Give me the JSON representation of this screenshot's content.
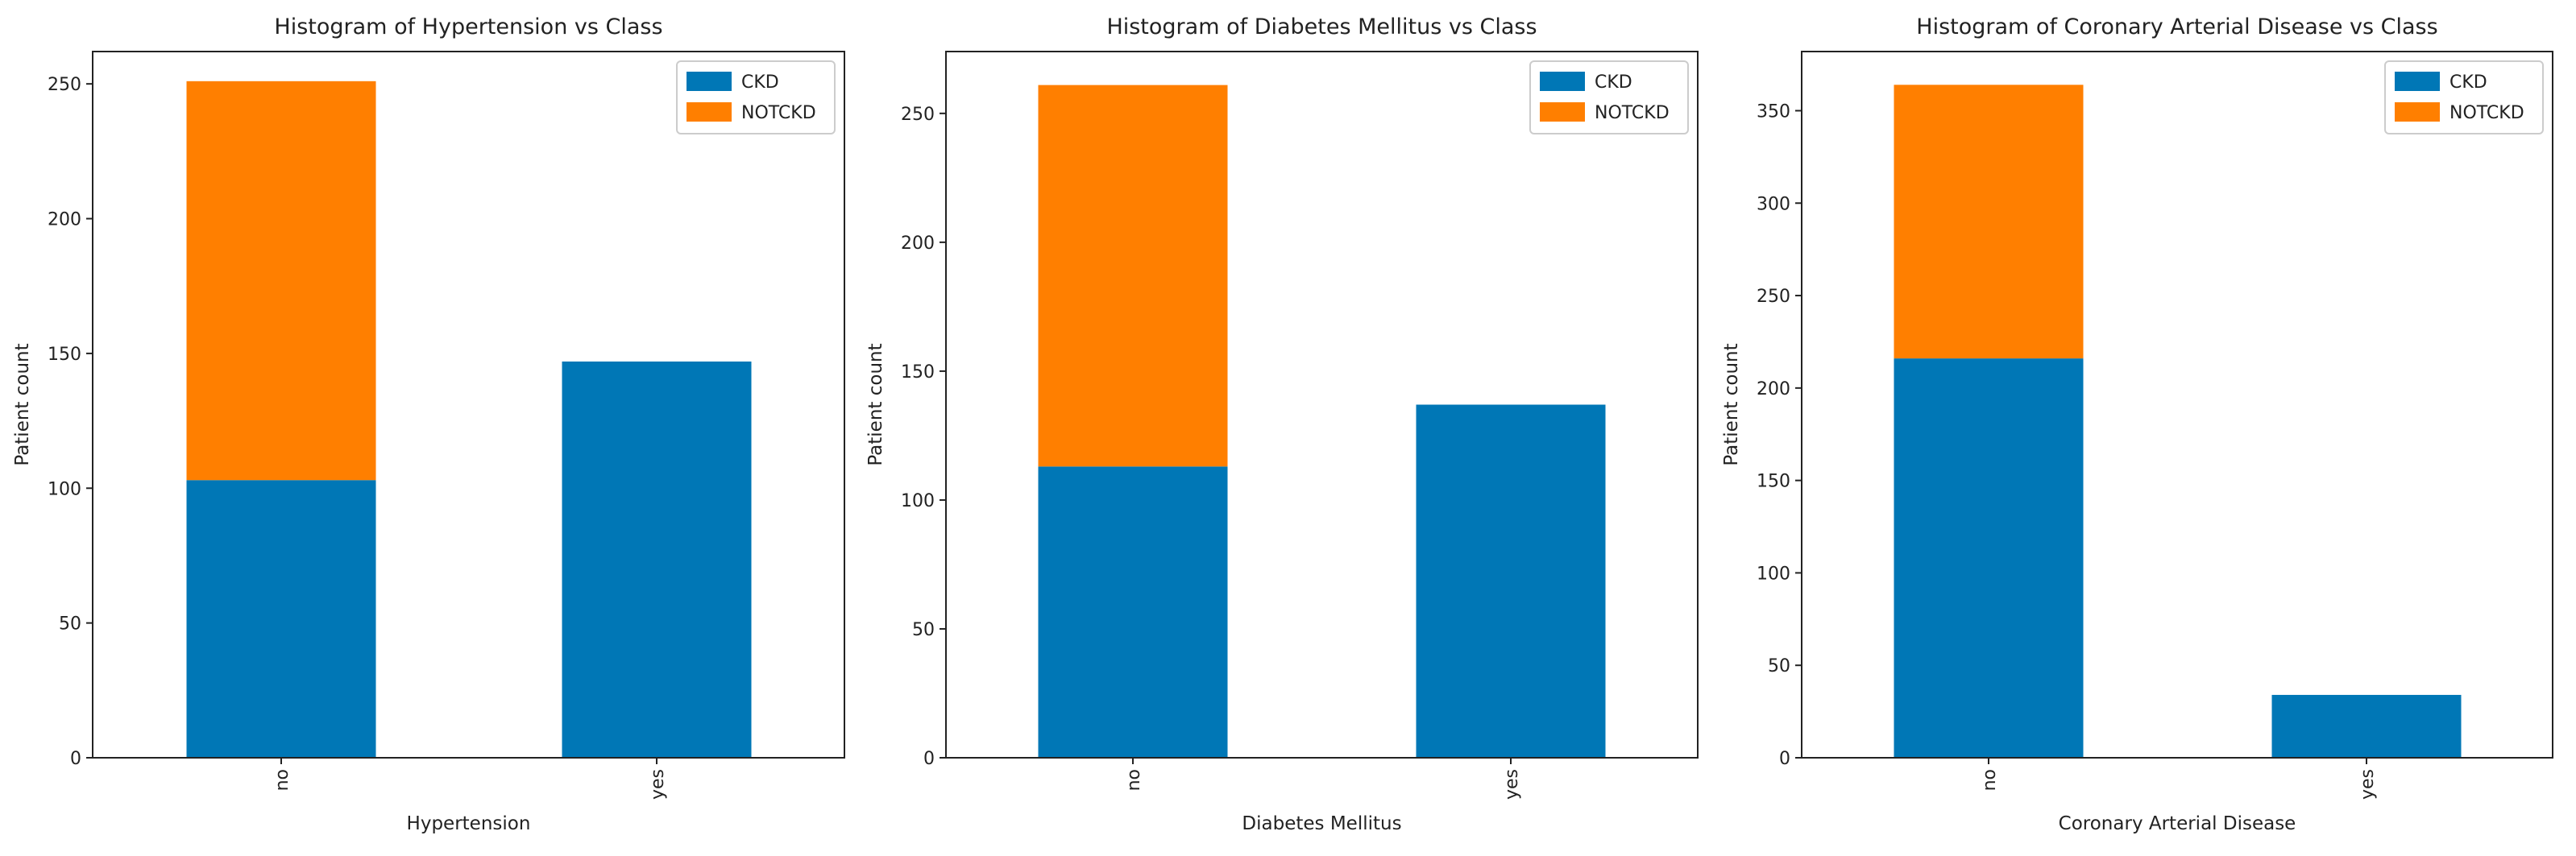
{
  "colors": {
    "ckd": "#0077b6",
    "notckd": "#ff7f00",
    "frame": "#222222",
    "legend_border": "#cccccc"
  },
  "chart_data": [
    {
      "type": "bar",
      "stacked": true,
      "title": "Histogram of Hypertension vs Class",
      "xlabel": "Hypertension",
      "ylabel": "Patient count",
      "categories": [
        "no",
        "yes"
      ],
      "series": [
        {
          "name": "CKD",
          "values": [
            103,
            147
          ]
        },
        {
          "name": "NOTCKD",
          "values": [
            148,
            0
          ]
        }
      ],
      "ylim": [
        0,
        262
      ],
      "yticks": [
        0,
        50,
        100,
        150,
        200,
        250
      ],
      "legend": "top-right",
      "grid": false
    },
    {
      "type": "bar",
      "stacked": true,
      "title": "Histogram of Diabetes Mellitus vs Class",
      "xlabel": "Diabetes Mellitus",
      "ylabel": "Patient count",
      "categories": [
        "no",
        "yes"
      ],
      "series": [
        {
          "name": "CKD",
          "values": [
            113,
            137
          ]
        },
        {
          "name": "NOTCKD",
          "values": [
            148,
            0
          ]
        }
      ],
      "ylim": [
        0,
        274
      ],
      "yticks": [
        0,
        50,
        100,
        150,
        200,
        250
      ],
      "legend": "top-right",
      "grid": false
    },
    {
      "type": "bar",
      "stacked": true,
      "title": "Histogram of Coronary Arterial Disease vs Class",
      "xlabel": "Coronary Arterial Disease",
      "ylabel": "Patient count",
      "categories": [
        "no",
        "yes"
      ],
      "series": [
        {
          "name": "CKD",
          "values": [
            216,
            34
          ]
        },
        {
          "name": "NOTCKD",
          "values": [
            148,
            0
          ]
        }
      ],
      "ylim": [
        0,
        382
      ],
      "yticks": [
        0,
        50,
        100,
        150,
        200,
        250,
        300,
        350
      ],
      "legend": "top-right",
      "grid": false
    }
  ]
}
